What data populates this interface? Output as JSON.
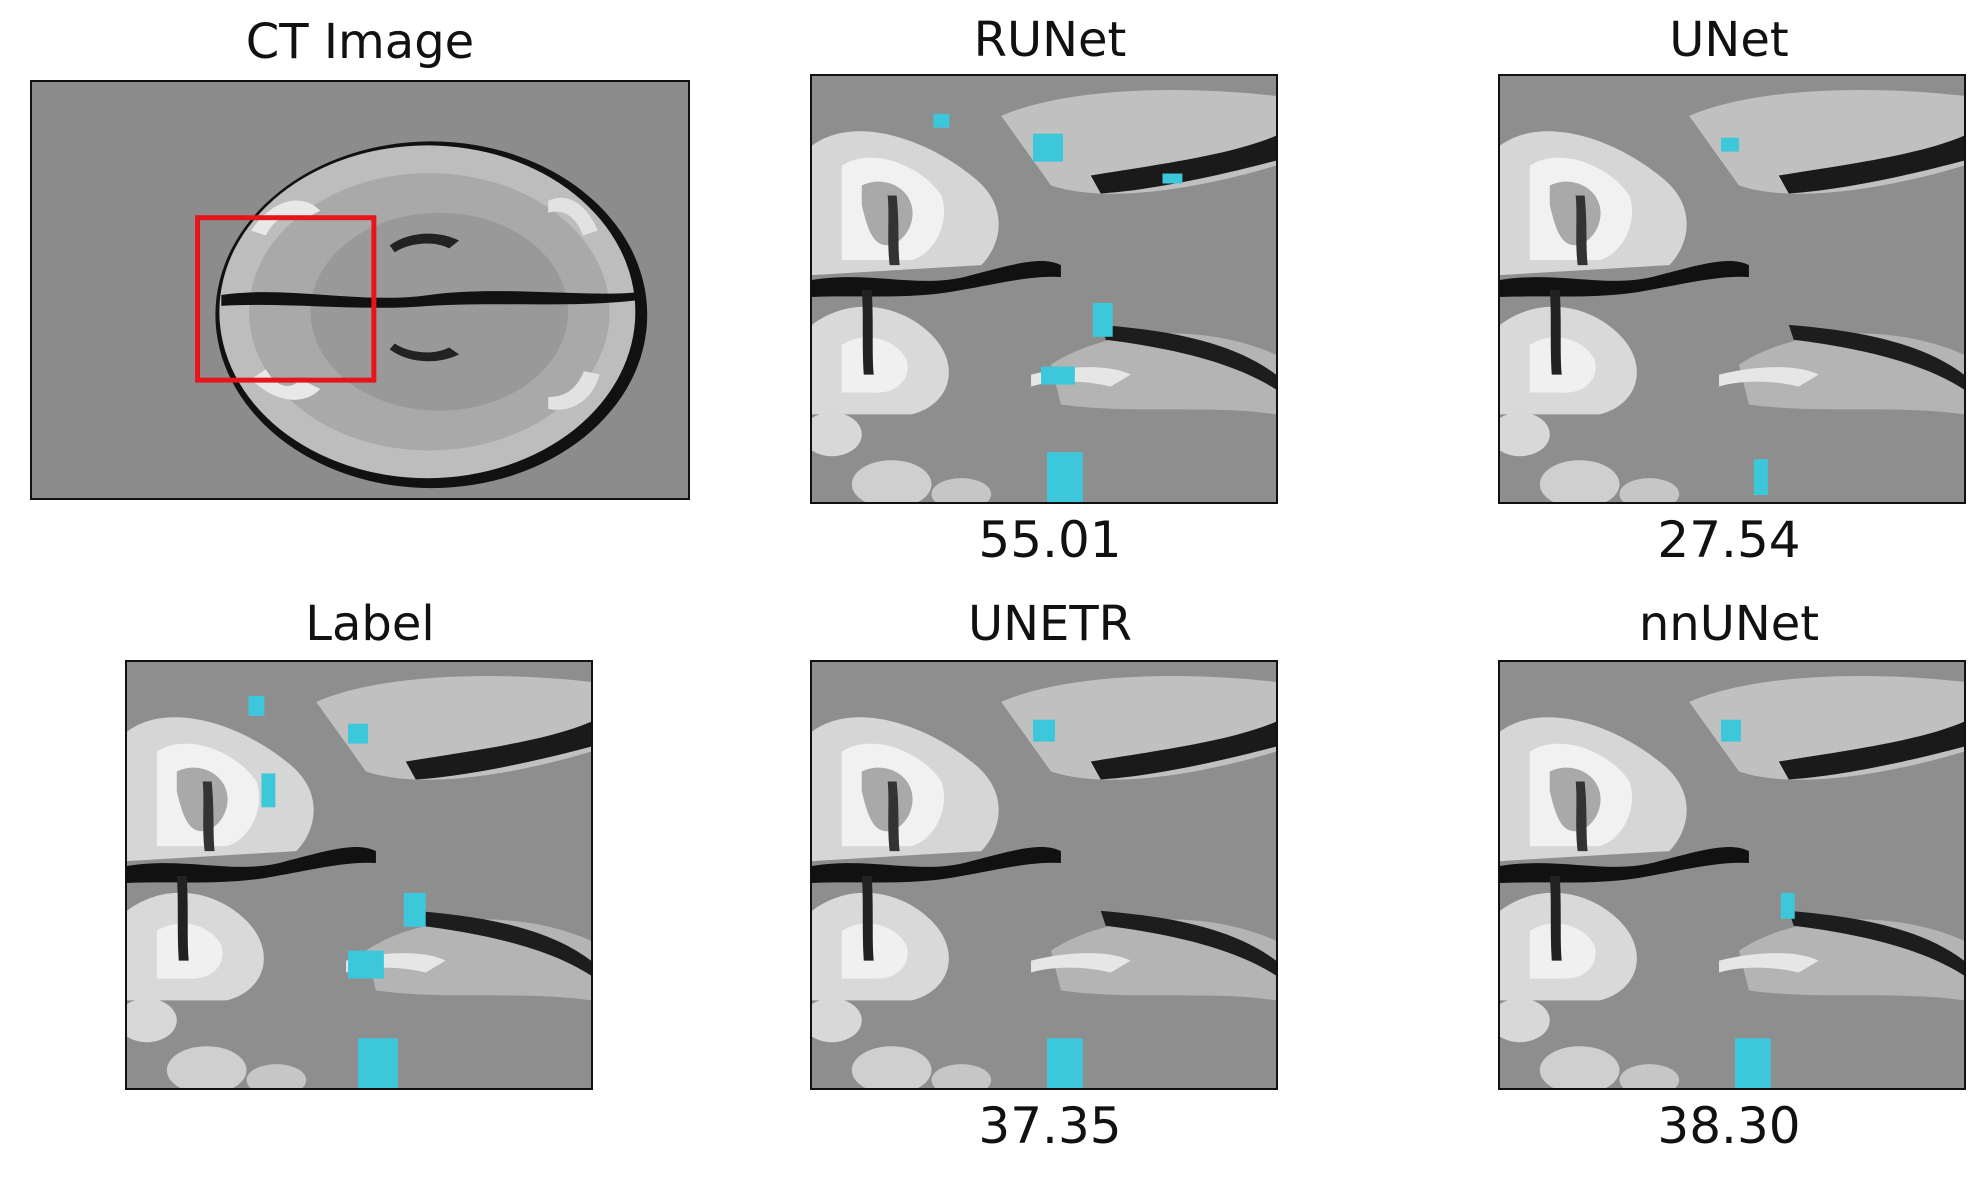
{
  "figure": {
    "ct_image": {
      "title": "CT Image"
    },
    "label": {
      "title": "Label"
    },
    "runet": {
      "title": "RUNet",
      "score": "55.01"
    },
    "unet": {
      "title": "UNet",
      "score": "27.54"
    },
    "unetr": {
      "title": "UNETR",
      "score": "37.35"
    },
    "nnunet": {
      "title": "nnUNet",
      "score": "38.30"
    }
  },
  "colors": {
    "background": "#8c8c8c",
    "segmentation": "#3cc8da",
    "roi_box": "#e8141c"
  }
}
